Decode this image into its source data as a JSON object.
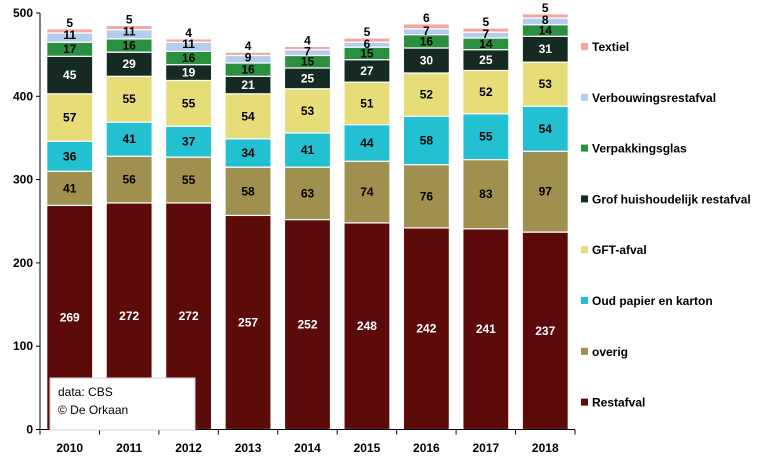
{
  "chart_data": {
    "type": "bar",
    "stacked": true,
    "categories": [
      "2010",
      "2011",
      "2012",
      "2013",
      "2014",
      "2015",
      "2016",
      "2017",
      "2018"
    ],
    "ylim": [
      0,
      500
    ],
    "yticks": [
      0,
      100,
      200,
      300,
      400,
      500
    ],
    "grid": false,
    "legend_position": "right",
    "series": [
      {
        "name": "Restafval",
        "color": "#5c0a0a",
        "label_color": "#ffffff",
        "values": [
          269,
          272,
          272,
          257,
          252,
          248,
          242,
          241,
          237
        ]
      },
      {
        "name": "overig",
        "color": "#a09050",
        "label_color": "#000000",
        "values": [
          41,
          56,
          55,
          58,
          63,
          74,
          76,
          83,
          97
        ]
      },
      {
        "name": "Oud papier en karton",
        "color": "#22c0d0",
        "label_color": "#000000",
        "values": [
          36,
          41,
          37,
          34,
          41,
          44,
          58,
          55,
          54
        ]
      },
      {
        "name": "GFT-afval",
        "color": "#e6dc78",
        "label_color": "#000000",
        "values": [
          57,
          55,
          55,
          54,
          53,
          51,
          52,
          52,
          53
        ]
      },
      {
        "name": "Grof huishoudelijk restafval",
        "color": "#142a22",
        "label_color": "#ffffff",
        "values": [
          45,
          29,
          19,
          21,
          25,
          27,
          30,
          25,
          31
        ]
      },
      {
        "name": "Verpakkingsglas",
        "color": "#2a9040",
        "label_color": "#000000",
        "values": [
          17,
          16,
          16,
          16,
          15,
          15,
          16,
          14,
          14
        ]
      },
      {
        "name": "Verbouwingsrestafval",
        "color": "#b4cdef",
        "label_color": "#000000",
        "values": [
          11,
          11,
          11,
          9,
          7,
          6,
          7,
          7,
          8
        ]
      },
      {
        "name": "Textiel",
        "color": "#f2a8a0",
        "label_color": "#000000",
        "values": [
          5,
          5,
          4,
          4,
          4,
          5,
          6,
          5,
          5
        ]
      }
    ],
    "annotation": [
      "data: CBS",
      "© De Orkaan"
    ]
  }
}
